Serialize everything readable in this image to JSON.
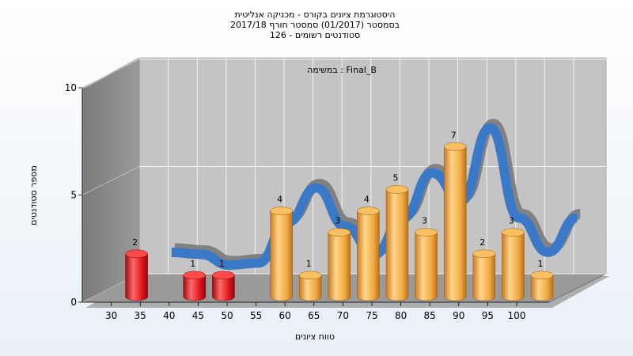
{
  "chart_data": {
    "type": "bar",
    "title_lines": [
      "היסטוגרמת ציונים בקורס - מכניקה אנליטית",
      "בסמסטר  (01/2017)  סמסטר חורף 2017/18",
      "סטודנטים רשומים - 126"
    ],
    "inner_label": "במשימה : Final_B",
    "xlabel": "טווח ציונים",
    "ylabel": "מספר סטודנטים",
    "x_ticks": [
      "30",
      "35",
      "40",
      "45",
      "50",
      "55",
      "60",
      "65",
      "70",
      "75",
      "80",
      "85",
      "90",
      "95",
      "100"
    ],
    "y_ticks": [
      "0",
      "5",
      "10"
    ],
    "ylim": [
      0,
      10
    ],
    "bins": [
      {
        "start": 30,
        "end": 35,
        "value": 2
      },
      {
        "start": 40,
        "end": 45,
        "value": 1
      },
      {
        "start": 45,
        "end": 50,
        "value": 1
      },
      {
        "start": 55,
        "end": 60,
        "value": 4
      },
      {
        "start": 60,
        "end": 65,
        "value": 1
      },
      {
        "start": 65,
        "end": 70,
        "value": 3
      },
      {
        "start": 70,
        "end": 75,
        "value": 4
      },
      {
        "start": 75,
        "end": 80,
        "value": 5
      },
      {
        "start": 80,
        "end": 85,
        "value": 3
      },
      {
        "start": 85,
        "end": 90,
        "value": 7
      },
      {
        "start": 90,
        "end": 95,
        "value": 2
      },
      {
        "start": 95,
        "end": 100,
        "value": 3
      },
      {
        "start": 100,
        "end": 105,
        "value": 1
      }
    ],
    "fail_below": 55,
    "curve": [
      [
        35,
        1.6
      ],
      [
        40,
        1.5
      ],
      [
        45,
        1.0
      ],
      [
        50,
        1.1
      ],
      [
        55,
        3.0
      ],
      [
        60,
        4.6
      ],
      [
        65,
        2.8
      ],
      [
        70,
        1.5
      ],
      [
        75,
        3.2
      ],
      [
        80,
        5.3
      ],
      [
        85,
        4.0
      ],
      [
        90,
        7.4
      ],
      [
        95,
        3.2
      ],
      [
        100,
        1.6
      ],
      [
        105,
        3.2
      ]
    ],
    "colors": {
      "fail_bar": "#e0141b",
      "pass_bar": "#f0a840",
      "curve": "#3a78c8",
      "curve_back": "#7a7a7a",
      "back_wall": "#c4c4c4",
      "left_wall": "#8a8a8a",
      "floor": "#9a9a9a",
      "grid": "#f2f2f2"
    }
  }
}
